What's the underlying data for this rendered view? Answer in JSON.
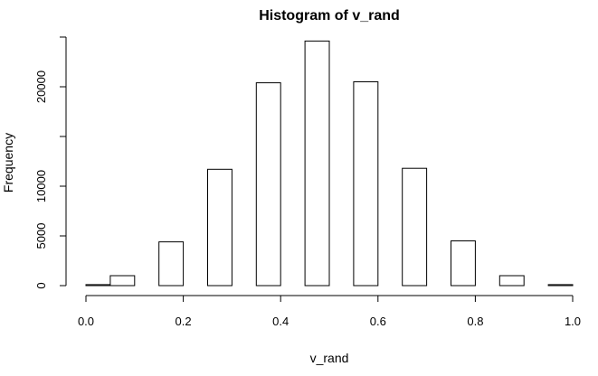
{
  "chart_data": {
    "type": "bar",
    "title": "Histogram of v_rand",
    "xlabel": "v_rand",
    "ylabel": "Frequency",
    "xlim": [
      0,
      1
    ],
    "ylim": [
      0,
      25000
    ],
    "x_ticks": [
      0.0,
      0.2,
      0.4,
      0.6,
      0.8,
      1.0
    ],
    "x_tick_labels": [
      "0.0",
      "0.2",
      "0.4",
      "0.6",
      "0.8",
      "1.0"
    ],
    "y_ticks": [
      0,
      5000,
      10000,
      15000,
      20000,
      25000
    ],
    "y_tick_labels": [
      "0",
      "5000",
      "10000",
      "",
      "20000",
      ""
    ],
    "bins": [
      {
        "x0": 0.0,
        "x1": 0.05,
        "count": 100
      },
      {
        "x0": 0.05,
        "x1": 0.1,
        "count": 1000
      },
      {
        "x0": 0.1,
        "x1": 0.15,
        "count": 0
      },
      {
        "x0": 0.15,
        "x1": 0.2,
        "count": 4400
      },
      {
        "x0": 0.2,
        "x1": 0.25,
        "count": 0
      },
      {
        "x0": 0.25,
        "x1": 0.3,
        "count": 11700
      },
      {
        "x0": 0.3,
        "x1": 0.35,
        "count": 0
      },
      {
        "x0": 0.35,
        "x1": 0.4,
        "count": 20400
      },
      {
        "x0": 0.4,
        "x1": 0.45,
        "count": 0
      },
      {
        "x0": 0.45,
        "x1": 0.5,
        "count": 24600
      },
      {
        "x0": 0.5,
        "x1": 0.55,
        "count": 0
      },
      {
        "x0": 0.55,
        "x1": 0.6,
        "count": 20500
      },
      {
        "x0": 0.6,
        "x1": 0.65,
        "count": 0
      },
      {
        "x0": 0.65,
        "x1": 0.7,
        "count": 11800
      },
      {
        "x0": 0.7,
        "x1": 0.75,
        "count": 0
      },
      {
        "x0": 0.75,
        "x1": 0.8,
        "count": 4500
      },
      {
        "x0": 0.8,
        "x1": 0.85,
        "count": 0
      },
      {
        "x0": 0.85,
        "x1": 0.9,
        "count": 1000
      },
      {
        "x0": 0.9,
        "x1": 0.95,
        "count": 0
      },
      {
        "x0": 0.95,
        "x1": 1.0,
        "count": 100
      }
    ],
    "grid": false,
    "colors": {
      "bar_fill": "#ffffff",
      "bar_stroke": "#000000"
    }
  }
}
